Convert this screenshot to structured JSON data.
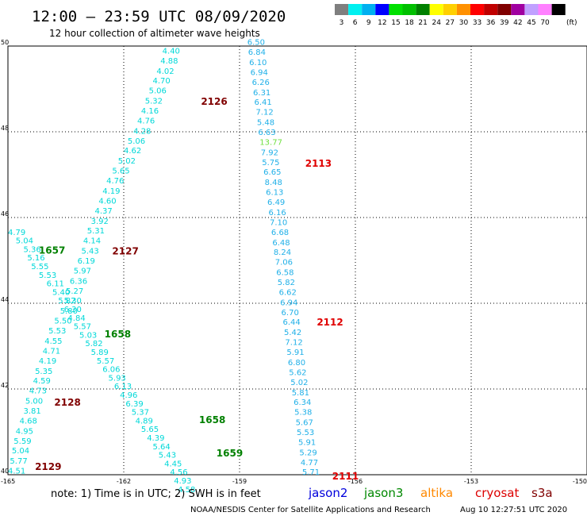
{
  "header": {
    "title": "12:00 – 23:59 UTC 08/09/2020",
    "subtitle": "12 hour collection of altimeter wave heights"
  },
  "legend": {
    "unit": "(ft)",
    "items": [
      {
        "label": "3",
        "color": "#7f7f7f"
      },
      {
        "label": "6",
        "color": "#00f0f0"
      },
      {
        "label": "9",
        "color": "#00b0f0"
      },
      {
        "label": "12",
        "color": "#0000ff"
      },
      {
        "label": "15",
        "color": "#00e000"
      },
      {
        "label": "18",
        "color": "#00c000"
      },
      {
        "label": "21",
        "color": "#008000"
      },
      {
        "label": "24",
        "color": "#ffff00"
      },
      {
        "label": "27",
        "color": "#ffd000"
      },
      {
        "label": "30",
        "color": "#ff9000"
      },
      {
        "label": "33",
        "color": "#ff0000"
      },
      {
        "label": "36",
        "color": "#c00000"
      },
      {
        "label": "39",
        "color": "#800000"
      },
      {
        "label": "42",
        "color": "#a000a0"
      },
      {
        "label": "45",
        "color": "#c0a0ff"
      },
      {
        "label": "70",
        "color": "#ff80ff"
      },
      {
        "label": "",
        "color": "#000000"
      }
    ]
  },
  "footer": {
    "note": "note:  1) Time is in UTC;  2) SWH is in feet",
    "satellites": [
      {
        "name": "jason2",
        "color": "#0000dd"
      },
      {
        "name": "jason3",
        "color": "#008800"
      },
      {
        "name": "altika",
        "color": "#ff8800"
      },
      {
        "name": "cryosat",
        "color": "#dd0000"
      },
      {
        "name": "s3a",
        "color": "#800000"
      }
    ],
    "credit": "NOAA/NESDIS Center for Satellite Applications and Research",
    "timestamp": "Aug 10 12:27:51 UTC 2020"
  },
  "chart_data": {
    "type": "scatter",
    "xlim": [
      -165,
      -150
    ],
    "ylim": [
      40,
      50
    ],
    "x_ticks": [
      "-165",
      "-162",
      "-159",
      "-156",
      "-153",
      "-150"
    ],
    "y_ticks": [
      "40",
      "42",
      "44",
      "46",
      "48",
      "50"
    ],
    "grid": true,
    "colors": {
      "cyan": "#00d8d8",
      "lightblue": "#20b0e8",
      "green": "#70e040",
      "darkred": "#800000",
      "red": "#e00000",
      "darkgreen": "#008000"
    },
    "points": [
      {
        "x": -161.0,
        "y": 49.9,
        "label": "4.40",
        "color": "cyan"
      },
      {
        "x": -161.05,
        "y": 49.67,
        "label": "4.88",
        "color": "cyan"
      },
      {
        "x": -161.15,
        "y": 49.43,
        "label": "4.02",
        "color": "cyan"
      },
      {
        "x": -161.25,
        "y": 49.2,
        "label": "4.70",
        "color": "cyan"
      },
      {
        "x": -161.35,
        "y": 48.97,
        "label": "5.06",
        "color": "cyan"
      },
      {
        "x": -161.45,
        "y": 48.73,
        "label": "5.32",
        "color": "cyan"
      },
      {
        "x": -161.55,
        "y": 48.5,
        "label": "4.16",
        "color": "cyan"
      },
      {
        "x": -161.65,
        "y": 48.27,
        "label": "4.76",
        "color": "cyan"
      },
      {
        "x": -161.75,
        "y": 48.03,
        "label": "4.28",
        "color": "cyan"
      },
      {
        "x": -161.9,
        "y": 47.8,
        "label": "5.06",
        "color": "cyan"
      },
      {
        "x": -162.0,
        "y": 47.57,
        "label": "4.62",
        "color": "cyan"
      },
      {
        "x": -162.15,
        "y": 47.33,
        "label": "5.02",
        "color": "cyan"
      },
      {
        "x": -162.3,
        "y": 47.1,
        "label": "5.65",
        "color": "cyan"
      },
      {
        "x": -162.45,
        "y": 46.87,
        "label": "4.76",
        "color": "cyan"
      },
      {
        "x": -162.55,
        "y": 46.63,
        "label": "4.19",
        "color": "cyan"
      },
      {
        "x": -162.65,
        "y": 46.4,
        "label": "4.60",
        "color": "cyan"
      },
      {
        "x": -162.75,
        "y": 46.17,
        "label": "4.37",
        "color": "cyan"
      },
      {
        "x": -162.85,
        "y": 45.93,
        "label": "3.92",
        "color": "cyan"
      },
      {
        "x": -162.95,
        "y": 45.7,
        "label": "5.31",
        "color": "cyan"
      },
      {
        "x": -163.05,
        "y": 45.47,
        "label": "4.14",
        "color": "cyan"
      },
      {
        "x": -163.1,
        "y": 45.23,
        "label": "5.43",
        "color": "cyan"
      },
      {
        "x": -163.2,
        "y": 45.0,
        "label": "6.19",
        "color": "cyan"
      },
      {
        "x": -163.3,
        "y": 44.77,
        "label": "5.97",
        "color": "cyan"
      },
      {
        "x": -163.4,
        "y": 44.53,
        "label": "6.36",
        "color": "cyan"
      },
      {
        "x": -163.5,
        "y": 44.3,
        "label": "5.27",
        "color": "cyan"
      },
      {
        "x": -163.55,
        "y": 44.07,
        "label": "5.30",
        "color": "cyan"
      },
      {
        "x": -163.65,
        "y": 43.83,
        "label": "5.80",
        "color": "cyan"
      },
      {
        "x": -163.8,
        "y": 43.6,
        "label": "5.50",
        "color": "cyan"
      },
      {
        "x": -163.95,
        "y": 43.37,
        "label": "5.53",
        "color": "cyan"
      },
      {
        "x": -164.05,
        "y": 43.13,
        "label": "4.55",
        "color": "cyan"
      },
      {
        "x": -164.1,
        "y": 42.9,
        "label": "4.71",
        "color": "cyan"
      },
      {
        "x": -164.2,
        "y": 42.67,
        "label": "4.19",
        "color": "cyan"
      },
      {
        "x": -164.3,
        "y": 42.43,
        "label": "5.35",
        "color": "cyan"
      },
      {
        "x": -164.35,
        "y": 42.2,
        "label": "4.59",
        "color": "cyan"
      },
      {
        "x": -164.45,
        "y": 41.97,
        "label": "4.73",
        "color": "cyan"
      },
      {
        "x": -164.55,
        "y": 41.73,
        "label": "5.00",
        "color": "cyan"
      },
      {
        "x": -164.6,
        "y": 41.5,
        "label": "3.81",
        "color": "cyan"
      },
      {
        "x": -164.7,
        "y": 41.27,
        "label": "4.68",
        "color": "cyan"
      },
      {
        "x": -164.8,
        "y": 41.03,
        "label": "4.95",
        "color": "cyan"
      },
      {
        "x": -164.85,
        "y": 40.8,
        "label": "5.59",
        "color": "cyan"
      },
      {
        "x": -164.9,
        "y": 40.57,
        "label": "5.04",
        "color": "cyan"
      },
      {
        "x": -164.95,
        "y": 40.33,
        "label": "5.77",
        "color": "cyan"
      },
      {
        "x": -165.0,
        "y": 40.1,
        "label": "4.51",
        "color": "cyan"
      },
      {
        "x": -165.0,
        "y": 45.67,
        "label": "4.79",
        "color": "cyan"
      },
      {
        "x": -164.8,
        "y": 45.47,
        "label": "5.04",
        "color": "cyan"
      },
      {
        "x": -164.6,
        "y": 45.27,
        "label": "5.36",
        "color": "cyan"
      },
      {
        "x": -164.5,
        "y": 45.07,
        "label": "5.16",
        "color": "cyan"
      },
      {
        "x": -164.4,
        "y": 44.87,
        "label": "5.55",
        "color": "cyan"
      },
      {
        "x": -164.2,
        "y": 44.67,
        "label": "5.53",
        "color": "cyan"
      },
      {
        "x": -164.0,
        "y": 44.47,
        "label": "6.11",
        "color": "cyan"
      },
      {
        "x": -163.85,
        "y": 44.27,
        "label": "5.40",
        "color": "cyan"
      },
      {
        "x": -163.7,
        "y": 44.07,
        "label": "5.82",
        "color": "cyan"
      },
      {
        "x": -163.55,
        "y": 43.87,
        "label": "6.30",
        "color": "cyan"
      },
      {
        "x": -163.45,
        "y": 43.67,
        "label": "4.84",
        "color": "cyan"
      },
      {
        "x": -163.3,
        "y": 43.47,
        "label": "5.57",
        "color": "cyan"
      },
      {
        "x": -163.15,
        "y": 43.27,
        "label": "5.03",
        "color": "cyan"
      },
      {
        "x": -163.0,
        "y": 43.07,
        "label": "5.82",
        "color": "cyan"
      },
      {
        "x": -162.85,
        "y": 42.87,
        "label": "5.89",
        "color": "cyan"
      },
      {
        "x": -162.7,
        "y": 42.67,
        "label": "5.57",
        "color": "cyan"
      },
      {
        "x": -162.55,
        "y": 42.47,
        "label": "6.06",
        "color": "cyan"
      },
      {
        "x": -162.4,
        "y": 42.27,
        "label": "5.93",
        "color": "cyan"
      },
      {
        "x": -162.25,
        "y": 42.07,
        "label": "6.13",
        "color": "cyan"
      },
      {
        "x": -162.1,
        "y": 41.87,
        "label": "4.96",
        "color": "cyan"
      },
      {
        "x": -161.95,
        "y": 41.67,
        "label": "6.39",
        "color": "cyan"
      },
      {
        "x": -161.8,
        "y": 41.47,
        "label": "5.37",
        "color": "cyan"
      },
      {
        "x": -161.7,
        "y": 41.27,
        "label": "4.89",
        "color": "cyan"
      },
      {
        "x": -161.55,
        "y": 41.07,
        "label": "5.65",
        "color": "cyan"
      },
      {
        "x": -161.4,
        "y": 40.87,
        "label": "4.39",
        "color": "cyan"
      },
      {
        "x": -161.25,
        "y": 40.67,
        "label": "5.64",
        "color": "cyan"
      },
      {
        "x": -161.1,
        "y": 40.47,
        "label": "5.43",
        "color": "cyan"
      },
      {
        "x": -160.95,
        "y": 40.27,
        "label": "4.45",
        "color": "cyan"
      },
      {
        "x": -160.8,
        "y": 40.07,
        "label": "4.56",
        "color": "cyan"
      },
      {
        "x": -160.7,
        "y": 39.87,
        "label": "4.93",
        "color": "cyan"
      },
      {
        "x": -160.6,
        "y": 39.67,
        "label": "4.58",
        "color": "cyan"
      },
      {
        "x": -158.8,
        "y": 50.1,
        "label": "6.50",
        "color": "lightblue"
      },
      {
        "x": -158.78,
        "y": 49.87,
        "label": "6.84",
        "color": "lightblue"
      },
      {
        "x": -158.75,
        "y": 49.63,
        "label": "6.10",
        "color": "lightblue"
      },
      {
        "x": -158.72,
        "y": 49.4,
        "label": "6.94",
        "color": "lightblue"
      },
      {
        "x": -158.68,
        "y": 49.17,
        "label": "6.26",
        "color": "lightblue"
      },
      {
        "x": -158.65,
        "y": 48.93,
        "label": "6.31",
        "color": "lightblue"
      },
      {
        "x": -158.62,
        "y": 48.7,
        "label": "6.41",
        "color": "lightblue"
      },
      {
        "x": -158.58,
        "y": 48.47,
        "label": "7.12",
        "color": "lightblue"
      },
      {
        "x": -158.55,
        "y": 48.23,
        "label": "5.48",
        "color": "lightblue"
      },
      {
        "x": -158.52,
        "y": 48.0,
        "label": "6.63",
        "color": "lightblue"
      },
      {
        "x": -158.48,
        "y": 47.77,
        "label": "13.77",
        "color": "green"
      },
      {
        "x": -158.45,
        "y": 47.53,
        "label": "7.92",
        "color": "lightblue"
      },
      {
        "x": -158.42,
        "y": 47.3,
        "label": "5.75",
        "color": "lightblue"
      },
      {
        "x": -158.38,
        "y": 47.07,
        "label": "6.65",
        "color": "lightblue"
      },
      {
        "x": -158.35,
        "y": 46.83,
        "label": "8.48",
        "color": "lightblue"
      },
      {
        "x": -158.32,
        "y": 46.6,
        "label": "6.13",
        "color": "lightblue"
      },
      {
        "x": -158.28,
        "y": 46.37,
        "label": "6.49",
        "color": "lightblue"
      },
      {
        "x": -158.25,
        "y": 46.13,
        "label": "6.16",
        "color": "lightblue"
      },
      {
        "x": -158.22,
        "y": 45.9,
        "label": "7.10",
        "color": "lightblue"
      },
      {
        "x": -158.18,
        "y": 45.67,
        "label": "6.68",
        "color": "lightblue"
      },
      {
        "x": -158.15,
        "y": 45.43,
        "label": "6.48",
        "color": "lightblue"
      },
      {
        "x": -158.12,
        "y": 45.2,
        "label": "8.24",
        "color": "lightblue"
      },
      {
        "x": -158.08,
        "y": 44.97,
        "label": "7.06",
        "color": "lightblue"
      },
      {
        "x": -158.05,
        "y": 44.73,
        "label": "6.58",
        "color": "lightblue"
      },
      {
        "x": -158.02,
        "y": 44.5,
        "label": "5.82",
        "color": "lightblue"
      },
      {
        "x": -157.98,
        "y": 44.27,
        "label": "6.62",
        "color": "lightblue"
      },
      {
        "x": -157.95,
        "y": 44.03,
        "label": "6.94",
        "color": "lightblue"
      },
      {
        "x": -157.92,
        "y": 43.8,
        "label": "6.70",
        "color": "lightblue"
      },
      {
        "x": -157.88,
        "y": 43.57,
        "label": "6.44",
        "color": "lightblue"
      },
      {
        "x": -157.85,
        "y": 43.33,
        "label": "5.42",
        "color": "lightblue"
      },
      {
        "x": -157.82,
        "y": 43.1,
        "label": "7.12",
        "color": "lightblue"
      },
      {
        "x": -157.78,
        "y": 42.87,
        "label": "5.91",
        "color": "lightblue"
      },
      {
        "x": -157.75,
        "y": 42.63,
        "label": "6.80",
        "color": "lightblue"
      },
      {
        "x": -157.72,
        "y": 42.4,
        "label": "5.62",
        "color": "lightblue"
      },
      {
        "x": -157.68,
        "y": 42.17,
        "label": "5.02",
        "color": "lightblue"
      },
      {
        "x": -157.65,
        "y": 41.93,
        "label": "5.81",
        "color": "lightblue"
      },
      {
        "x": -157.6,
        "y": 41.7,
        "label": "6.34",
        "color": "lightblue"
      },
      {
        "x": -157.58,
        "y": 41.47,
        "label": "5.38",
        "color": "lightblue"
      },
      {
        "x": -157.55,
        "y": 41.23,
        "label": "5.67",
        "color": "lightblue"
      },
      {
        "x": -157.52,
        "y": 41.0,
        "label": "5.53",
        "color": "lightblue"
      },
      {
        "x": -157.48,
        "y": 40.77,
        "label": "5.91",
        "color": "lightblue"
      },
      {
        "x": -157.45,
        "y": 40.53,
        "label": "5.29",
        "color": "lightblue"
      },
      {
        "x": -157.42,
        "y": 40.3,
        "label": "4.77",
        "color": "lightblue"
      },
      {
        "x": -157.38,
        "y": 40.07,
        "label": "5.71",
        "color": "lightblue"
      }
    ],
    "pass_labels": [
      {
        "x": -160.0,
        "y": 48.72,
        "label": "2126",
        "color": "darkred"
      },
      {
        "x": -157.3,
        "y": 47.28,
        "label": "2113",
        "color": "red"
      },
      {
        "x": -162.3,
        "y": 45.23,
        "label": "2127",
        "color": "darkred"
      },
      {
        "x": -164.2,
        "y": 45.25,
        "label": "1657",
        "color": "darkgreen"
      },
      {
        "x": -157.0,
        "y": 43.57,
        "label": "2112",
        "color": "red"
      },
      {
        "x": -162.5,
        "y": 43.3,
        "label": "1658",
        "color": "darkgreen"
      },
      {
        "x": -163.8,
        "y": 41.7,
        "label": "2128",
        "color": "darkred"
      },
      {
        "x": -160.05,
        "y": 41.3,
        "label": "1658",
        "color": "darkgreen"
      },
      {
        "x": -164.3,
        "y": 40.2,
        "label": "2129",
        "color": "darkred"
      },
      {
        "x": -159.6,
        "y": 40.52,
        "label": "1659",
        "color": "darkgreen"
      },
      {
        "x": -156.6,
        "y": 39.98,
        "label": "2111",
        "color": "red"
      }
    ]
  }
}
